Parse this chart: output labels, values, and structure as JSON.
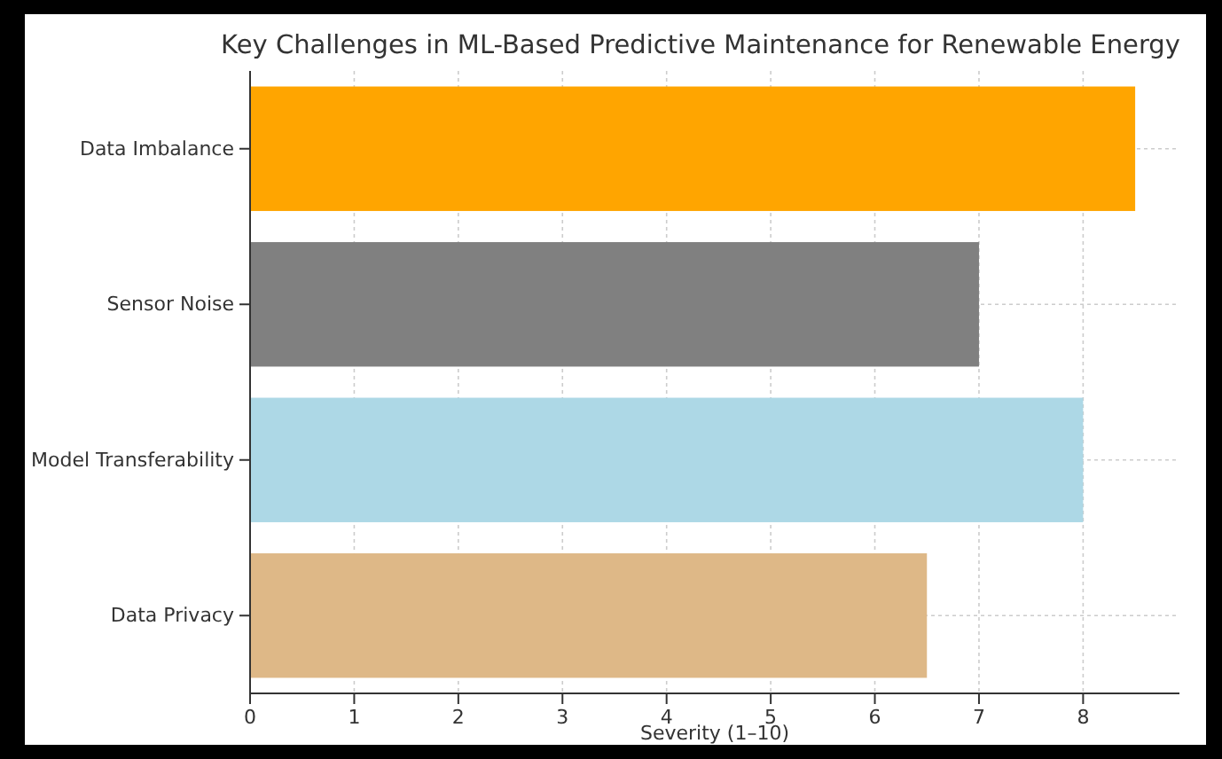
{
  "chart_data": {
    "type": "bar",
    "orientation": "horizontal",
    "title": "Key Challenges in ML-Based Predictive Maintenance for Renewable Energy",
    "xlabel": "Severity (1–10)",
    "categories": [
      "Data Imbalance",
      "Sensor Noise",
      "Model Transferability",
      "Data Privacy"
    ],
    "values": [
      8.5,
      7,
      8,
      6.5
    ],
    "colors": [
      "#ffa500",
      "#808080",
      "#add8e6",
      "#deb887"
    ],
    "xlim": [
      0,
      8.925
    ],
    "xticks": [
      0,
      1,
      2,
      3,
      4,
      5,
      6,
      7,
      8
    ],
    "grid": true
  }
}
